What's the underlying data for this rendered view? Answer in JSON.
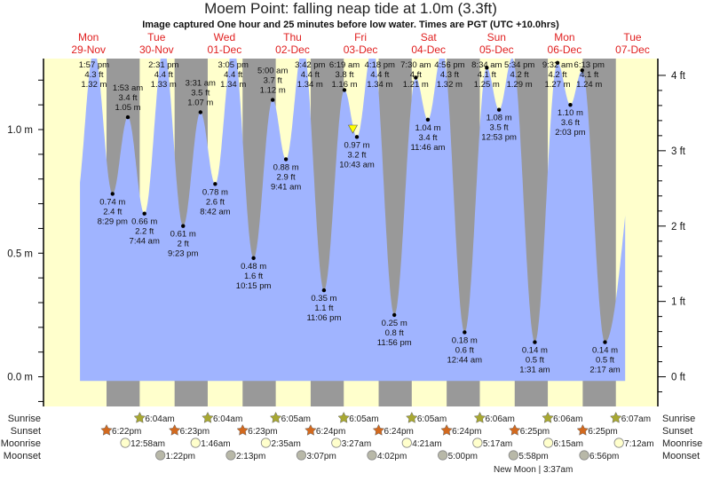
{
  "title": "Moem Point: falling  neap tide at 1.0m (3.3ft)",
  "subtitle": "Image captured One hour and 25 minutes before low water. Times are PGT (UTC +10.0hrs)",
  "colors": {
    "day": "#ffffcc",
    "night": "#999999",
    "water": "#a0b4ff",
    "day_label": "#e02020",
    "sunrise": "#a8a832",
    "sunset": "#d2691e",
    "moonrise": "#ffffcc",
    "moonset": "#b8b8a8",
    "current_marker": "#ffff00"
  },
  "chart_data": {
    "type": "area",
    "title": "Moem Point: falling  neap tide at 1.0m (3.3ft)",
    "ylim_m": [
      -0.1,
      1.28
    ],
    "left_axis": {
      "unit": "m",
      "tick_labels": [
        "0.0 m",
        "0.5 m",
        "1.0 m"
      ],
      "ticks": [
        0,
        0.5,
        1.0
      ]
    },
    "right_axis": {
      "unit": "ft",
      "tick_labels": [
        "0 ft",
        "1 ft",
        "2 ft",
        "3 ft",
        "4 ft"
      ],
      "ticks": [
        0,
        1,
        2,
        3,
        4
      ]
    },
    "days": [
      {
        "dow": "Mon",
        "date": "29-Nov"
      },
      {
        "dow": "Tue",
        "date": "30-Nov"
      },
      {
        "dow": "Wed",
        "date": "01-Dec"
      },
      {
        "dow": "Thu",
        "date": "02-Dec"
      },
      {
        "dow": "Fri",
        "date": "03-Dec"
      },
      {
        "dow": "Sat",
        "date": "04-Dec"
      },
      {
        "dow": "Sun",
        "date": "05-Dec"
      },
      {
        "dow": "Mon",
        "date": "06-Dec"
      },
      {
        "dow": "Tue",
        "date": "07-Dec"
      }
    ],
    "extremes": [
      {
        "type": "high",
        "date": "29-Nov",
        "time": "1:57 pm",
        "m": 1.32,
        "ft": 4.3
      },
      {
        "type": "low",
        "date": "29-Nov",
        "time": "8:29 pm",
        "m": 0.74,
        "ft": 2.4
      },
      {
        "type": "high",
        "date": "30-Nov",
        "time": "1:53 am",
        "m": 1.05,
        "ft": 3.4
      },
      {
        "type": "low",
        "date": "30-Nov",
        "time": "7:44 am",
        "m": 0.66,
        "ft": 2.2
      },
      {
        "type": "high",
        "date": "30-Nov",
        "time": "2:31 pm",
        "m": 1.33,
        "ft": 4.4
      },
      {
        "type": "low",
        "date": "30-Nov",
        "time": "9:23 pm",
        "m": 0.61,
        "ft": 2.0
      },
      {
        "type": "high",
        "date": "01-Dec",
        "time": "3:31 am",
        "m": 1.07,
        "ft": 3.5
      },
      {
        "type": "low",
        "date": "01-Dec",
        "time": "8:42 am",
        "m": 0.78,
        "ft": 2.6
      },
      {
        "type": "high",
        "date": "01-Dec",
        "time": "3:05 pm",
        "m": 1.34,
        "ft": 4.4
      },
      {
        "type": "low",
        "date": "01-Dec",
        "time": "10:15 pm",
        "m": 0.48,
        "ft": 1.6
      },
      {
        "type": "high",
        "date": "02-Dec",
        "time": "5:00 am",
        "m": 1.12,
        "ft": 3.7
      },
      {
        "type": "low",
        "date": "02-Dec",
        "time": "9:41 am",
        "m": 0.88,
        "ft": 2.9
      },
      {
        "type": "high",
        "date": "02-Dec",
        "time": "3:42 pm",
        "m": 1.34,
        "ft": 4.4
      },
      {
        "type": "low",
        "date": "02-Dec",
        "time": "11:06 pm",
        "m": 0.35,
        "ft": 1.1
      },
      {
        "type": "high",
        "date": "03-Dec",
        "time": "6:19 am",
        "m": 1.16,
        "ft": 3.8
      },
      {
        "type": "low",
        "date": "03-Dec",
        "time": "10:43 am",
        "m": 0.97,
        "ft": 3.2
      },
      {
        "type": "high",
        "date": "03-Dec",
        "time": "4:18 pm",
        "m": 1.34,
        "ft": 4.4
      },
      {
        "type": "low",
        "date": "03-Dec",
        "time": "11:56 pm",
        "m": 0.25,
        "ft": 0.8
      },
      {
        "type": "high",
        "date": "04-Dec",
        "time": "7:30 am",
        "m": 1.21,
        "ft": 4.0
      },
      {
        "type": "low",
        "date": "04-Dec",
        "time": "11:46 am",
        "m": 1.04,
        "ft": 3.4
      },
      {
        "type": "high",
        "date": "04-Dec",
        "time": "4:56 pm",
        "m": 1.32,
        "ft": 4.3
      },
      {
        "type": "low",
        "date": "05-Dec",
        "time": "12:44 am",
        "m": 0.18,
        "ft": 0.6
      },
      {
        "type": "high",
        "date": "05-Dec",
        "time": "8:34 am",
        "m": 1.25,
        "ft": 4.1
      },
      {
        "type": "low",
        "date": "05-Dec",
        "time": "12:53 pm",
        "m": 1.08,
        "ft": 3.5
      },
      {
        "type": "high",
        "date": "05-Dec",
        "time": "5:34 pm",
        "m": 1.29,
        "ft": 4.2
      },
      {
        "type": "low",
        "date": "06-Dec",
        "time": "1:31 am",
        "m": 0.14,
        "ft": 0.5
      },
      {
        "type": "high",
        "date": "06-Dec",
        "time": "9:32 am",
        "m": 1.27,
        "ft": 4.2
      },
      {
        "type": "low",
        "date": "06-Dec",
        "time": "2:03 pm",
        "m": 1.1,
        "ft": 3.6
      },
      {
        "type": "high",
        "date": "06-Dec",
        "time": "6:13 pm",
        "m": 1.24,
        "ft": 4.1
      },
      {
        "type": "low",
        "date": "07-Dec",
        "time": "2:17 am",
        "m": 0.14,
        "ft": 0.5
      }
    ],
    "current": {
      "date": "03-Dec",
      "time": "9:18 am",
      "m": 1.0
    }
  },
  "rows": {
    "sunrise": {
      "label": "Sunrise",
      "events": [
        {
          "date": "30-Nov",
          "time": "6:04am"
        },
        {
          "date": "01-Dec",
          "time": "6:04am"
        },
        {
          "date": "02-Dec",
          "time": "6:05am"
        },
        {
          "date": "03-Dec",
          "time": "6:05am"
        },
        {
          "date": "04-Dec",
          "time": "6:05am"
        },
        {
          "date": "05-Dec",
          "time": "6:06am"
        },
        {
          "date": "06-Dec",
          "time": "6:06am"
        },
        {
          "date": "07-Dec",
          "time": "6:07am"
        }
      ]
    },
    "sunset": {
      "label": "Sunset",
      "events": [
        {
          "date": "29-Nov",
          "time": "6:22pm"
        },
        {
          "date": "30-Nov",
          "time": "6:23pm"
        },
        {
          "date": "01-Dec",
          "time": "6:23pm"
        },
        {
          "date": "02-Dec",
          "time": "6:24pm"
        },
        {
          "date": "03-Dec",
          "time": "6:24pm"
        },
        {
          "date": "04-Dec",
          "time": "6:24pm"
        },
        {
          "date": "05-Dec",
          "time": "6:25pm"
        },
        {
          "date": "06-Dec",
          "time": "6:25pm"
        }
      ]
    },
    "moonrise": {
      "label": "Moonrise",
      "events": [
        {
          "date": "30-Nov",
          "time": "12:58am"
        },
        {
          "date": "01-Dec",
          "time": "1:46am"
        },
        {
          "date": "02-Dec",
          "time": "2:35am"
        },
        {
          "date": "03-Dec",
          "time": "3:27am"
        },
        {
          "date": "04-Dec",
          "time": "4:21am"
        },
        {
          "date": "05-Dec",
          "time": "5:17am"
        },
        {
          "date": "06-Dec",
          "time": "6:15am"
        },
        {
          "date": "07-Dec",
          "time": "7:12am"
        }
      ]
    },
    "moonset": {
      "label": "Moonset",
      "events": [
        {
          "date": "30-Nov",
          "time": "1:22pm"
        },
        {
          "date": "01-Dec",
          "time": "2:13pm"
        },
        {
          "date": "02-Dec",
          "time": "3:07pm"
        },
        {
          "date": "03-Dec",
          "time": "4:02pm"
        },
        {
          "date": "04-Dec",
          "time": "5:00pm"
        },
        {
          "date": "05-Dec",
          "time": "5:58pm"
        },
        {
          "date": "06-Dec",
          "time": "6:56pm"
        }
      ]
    }
  },
  "moon_phase": "New Moon | 3:37am"
}
